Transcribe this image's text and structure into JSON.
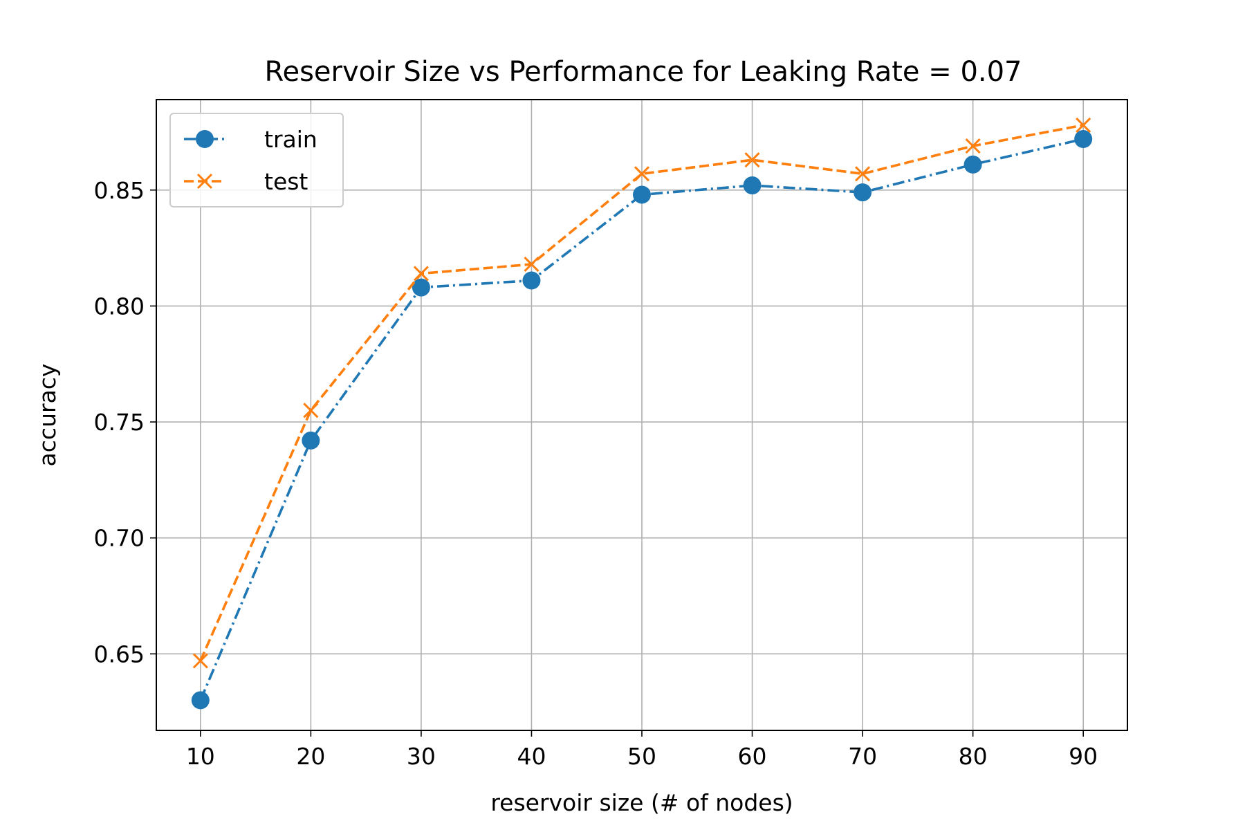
{
  "chart_data": {
    "type": "line",
    "title": "Reservoir Size vs Performance for Leaking Rate = 0.07",
    "xlabel": "reservoir size (# of nodes)",
    "ylabel": "accuracy",
    "x": [
      10,
      20,
      30,
      40,
      50,
      60,
      70,
      80,
      90
    ],
    "xticks": [
      10,
      20,
      30,
      40,
      50,
      60,
      70,
      80,
      90
    ],
    "yticks": [
      0.65,
      0.7,
      0.75,
      0.8,
      0.85
    ],
    "ytick_labels": [
      "0.65",
      "0.70",
      "0.75",
      "0.80",
      "0.85"
    ],
    "xlim": [
      6,
      94
    ],
    "ylim": [
      0.617,
      0.889
    ],
    "grid": true,
    "legend_position": "top-left",
    "series": [
      {
        "name": "train",
        "values": [
          0.63,
          0.742,
          0.808,
          0.811,
          0.848,
          0.852,
          0.849,
          0.861,
          0.872
        ],
        "color": "#1f77b4",
        "line_style": "dash-dot",
        "marker": "circle"
      },
      {
        "name": "test",
        "values": [
          0.647,
          0.755,
          0.814,
          0.818,
          0.857,
          0.863,
          0.857,
          0.869,
          0.878
        ],
        "color": "#ff7f0e",
        "line_style": "dashed",
        "marker": "x"
      }
    ]
  }
}
